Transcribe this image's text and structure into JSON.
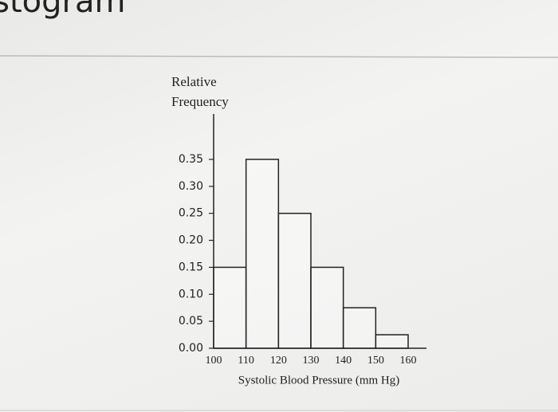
{
  "chart_data": {
    "type": "histogram",
    "title": "istogram",
    "ylabel": "Relative Frequency",
    "xlabel": "Systolic Blood Pressure (mm Hg)",
    "bins": [
      100,
      110,
      120,
      130,
      140,
      150,
      160
    ],
    "values": [
      0.15,
      0.35,
      0.25,
      0.15,
      0.075,
      0.025
    ],
    "color": "#ffffff",
    "edgecolor": "#222222",
    "xlim": [
      100,
      160
    ],
    "xticks": [
      100,
      110,
      120,
      130,
      140,
      150,
      160
    ],
    "ylim": [
      0,
      0.35
    ],
    "yticks": [
      {
        "value": 0,
        "label": "0.00"
      },
      0.05,
      {
        "value": 0.1,
        "label": "0.10"
      },
      0.15,
      {
        "value": 0.2,
        "label": "0.20"
      },
      0.25,
      {
        "value": 0.3,
        "label": "0.30"
      },
      0.35
    ]
  }
}
